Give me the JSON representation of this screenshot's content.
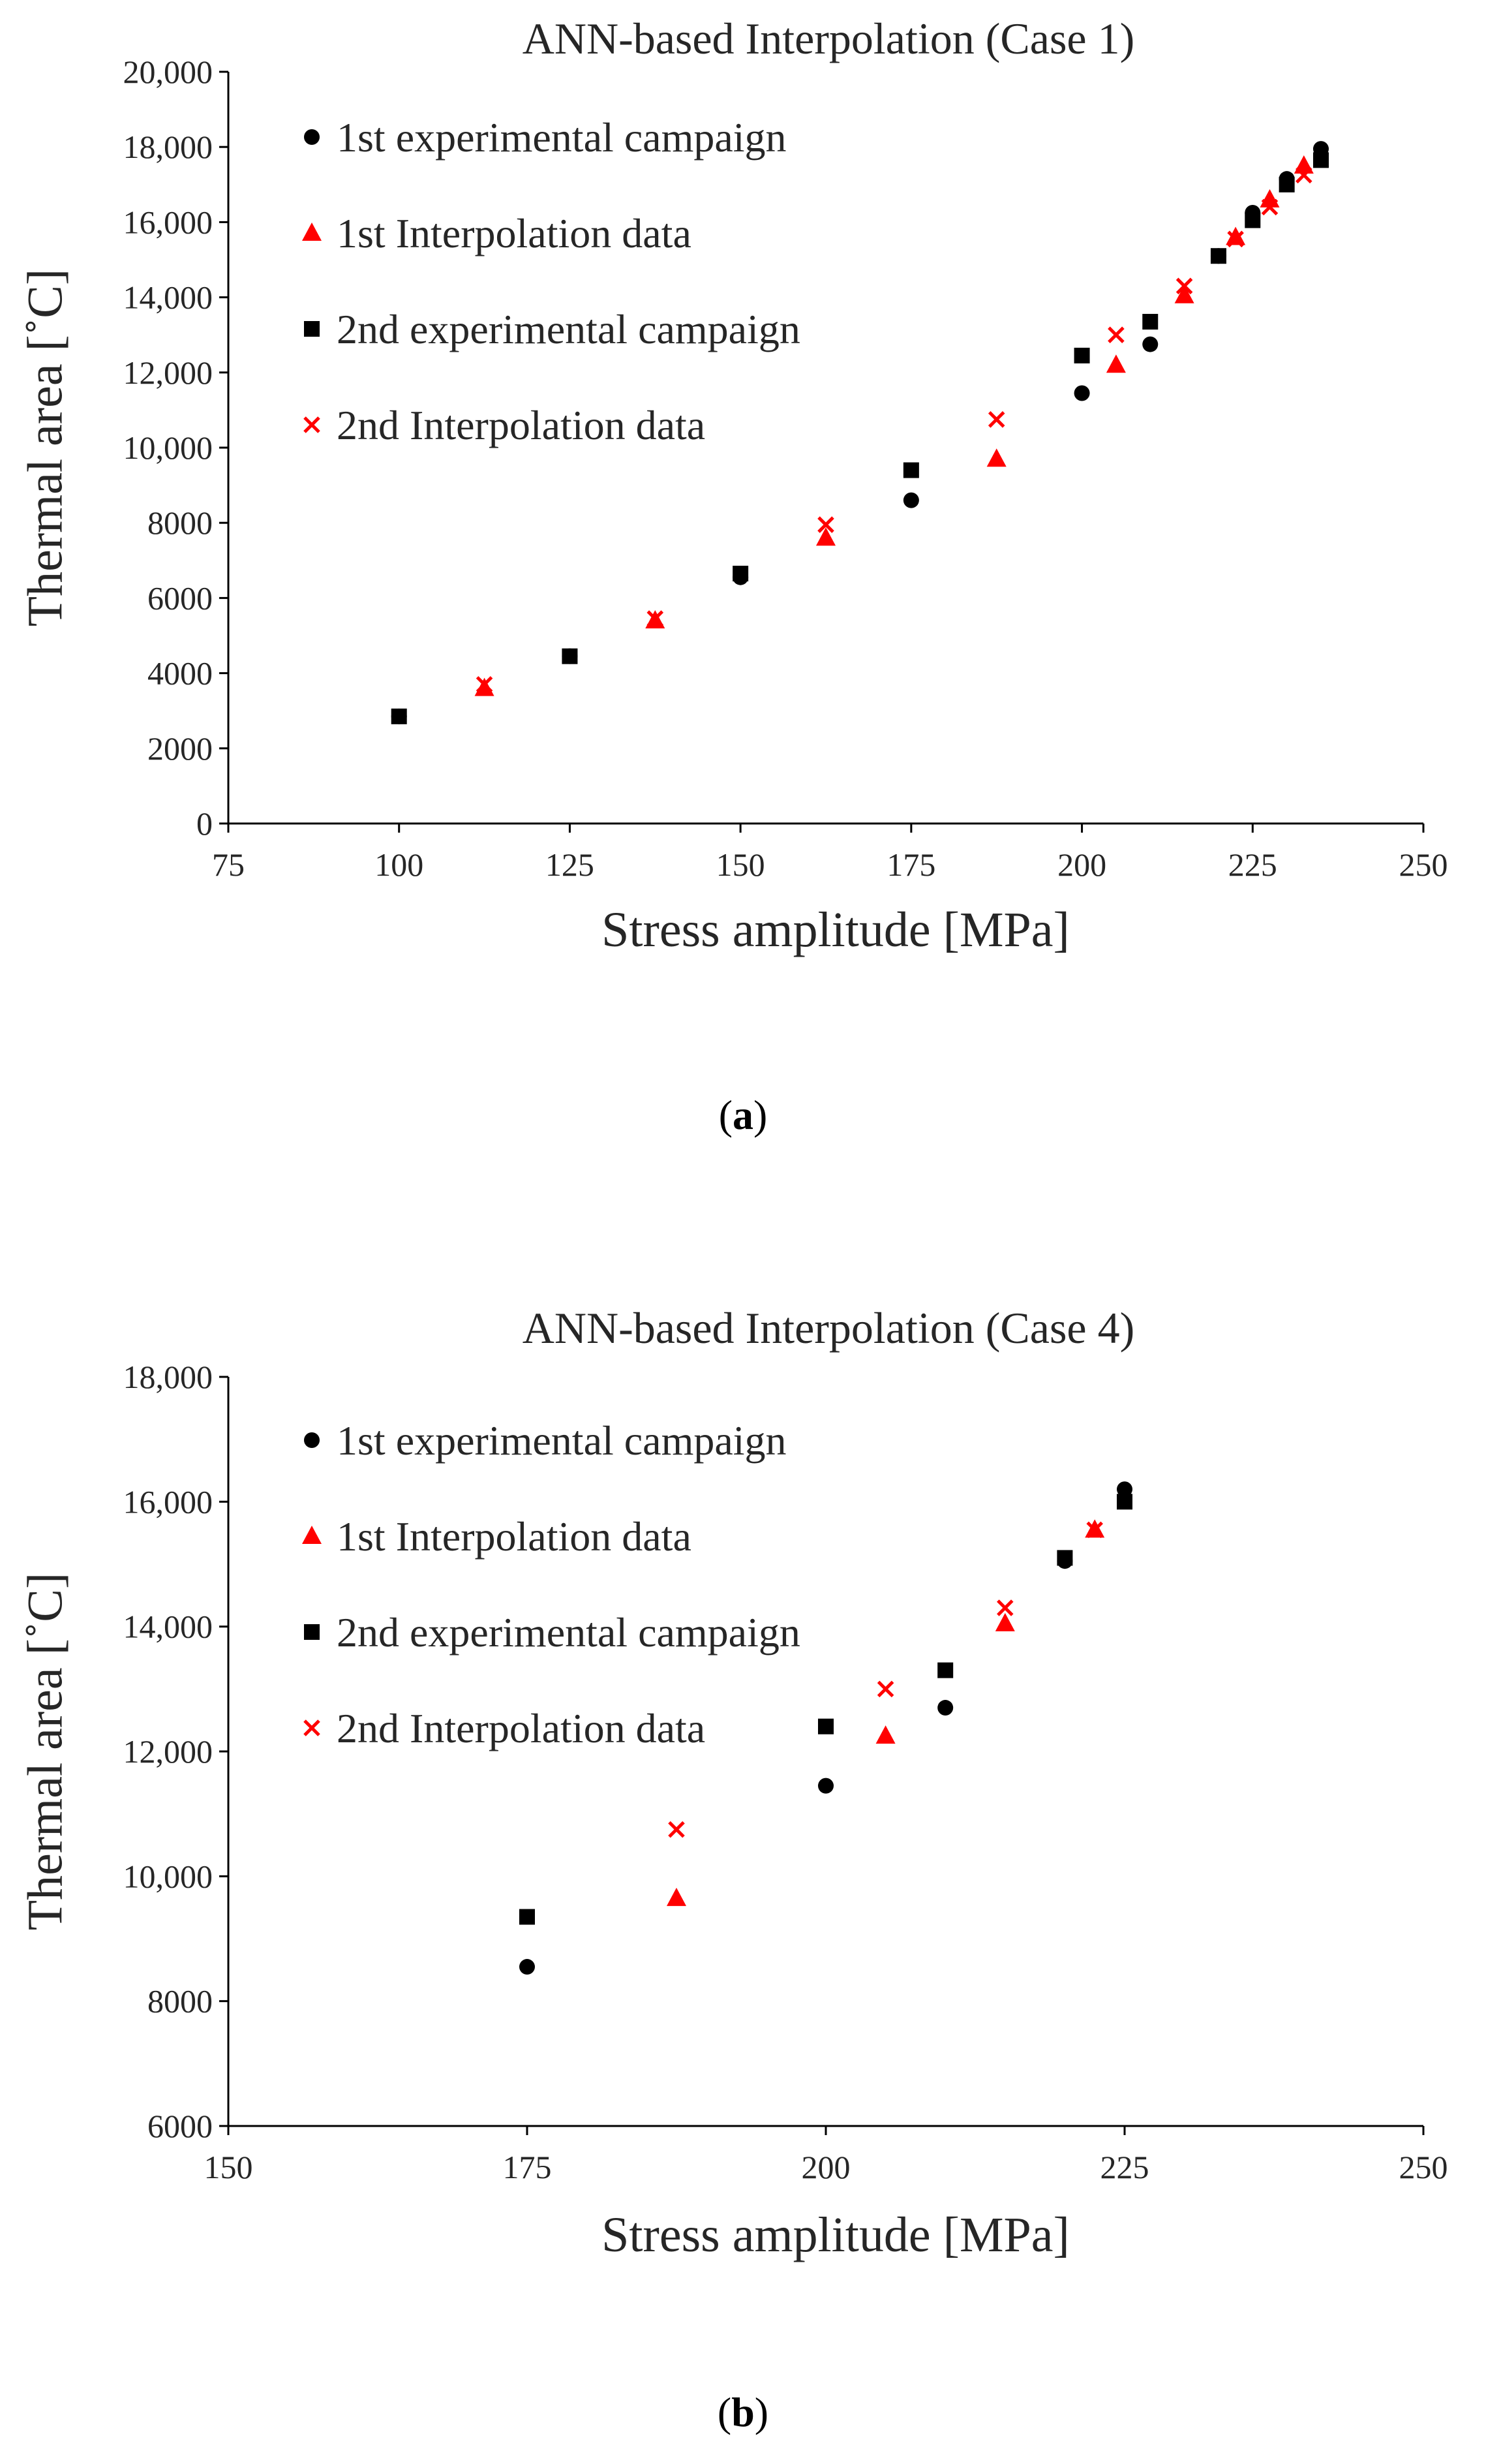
{
  "colors": {
    "black": "#000000",
    "red": "#ff0000",
    "text": "#262626"
  },
  "legend": {
    "items": [
      {
        "label": "1st experimental campaign",
        "marker": "circle",
        "color": "#000000"
      },
      {
        "label": "1st Interpolation data",
        "marker": "triangle",
        "color": "#ff0000"
      },
      {
        "label": "2nd experimental  campaign",
        "marker": "square",
        "color": "#000000"
      },
      {
        "label": "2nd Interpolation data",
        "marker": "cross",
        "color": "#ff0000"
      }
    ]
  },
  "chart_data": [
    {
      "type": "scatter",
      "panel": "a",
      "caption_letter": "a",
      "caption_open": "(",
      "caption_close": ")",
      "title": "ANN-based Interpolation (Case 1)",
      "xlabel": "Stress amplitude [MPa]",
      "ylabel": "Thermal area [˚C]",
      "xlim": [
        75,
        250
      ],
      "ylim": [
        0,
        20000
      ],
      "x_ticks": [
        75,
        100,
        125,
        150,
        175,
        200,
        225,
        250
      ],
      "x_tick_labels": [
        "75",
        "100",
        "125",
        "150",
        "175",
        "200",
        "225",
        "250"
      ],
      "y_ticks": [
        0,
        2000,
        4000,
        6000,
        8000,
        10000,
        12000,
        14000,
        16000,
        18000,
        20000
      ],
      "y_tick_labels": [
        "0",
        "2000",
        "4000",
        "6000",
        "8000",
        "10,000",
        "12,000",
        "14,000",
        "16,000",
        "18,000",
        "20,000"
      ],
      "series": [
        {
          "name": "1st experimental campaign",
          "marker": "circle",
          "color": "#000000",
          "x": [
            100,
            125,
            150,
            175,
            200,
            210,
            220,
            225,
            230,
            235
          ],
          "y": [
            2850,
            4450,
            6550,
            8600,
            11450,
            12750,
            15100,
            16250,
            17150,
            17950
          ]
        },
        {
          "name": "1st Interpolation data",
          "marker": "triangle",
          "color": "#ff0000",
          "x": [
            112.5,
            137.5,
            162.5,
            187.5,
            205,
            215,
            222.5,
            227.5,
            232.5
          ],
          "y": [
            3600,
            5400,
            7600,
            9700,
            12200,
            14050,
            15600,
            16600,
            17500
          ]
        },
        {
          "name": "2nd experimental  campaign",
          "marker": "square",
          "color": "#000000",
          "x": [
            100,
            125,
            150,
            175,
            200,
            210,
            220,
            225,
            230,
            235
          ],
          "y": [
            2850,
            4450,
            6650,
            9400,
            12450,
            13350,
            15100,
            16050,
            17000,
            17650
          ]
        },
        {
          "name": "2nd Interpolation data",
          "marker": "cross",
          "color": "#ff0000",
          "x": [
            112.5,
            137.5,
            162.5,
            187.5,
            205,
            215,
            222.5,
            227.5,
            232.5
          ],
          "y": [
            3700,
            5450,
            7950,
            10750,
            13000,
            14300,
            15550,
            16400,
            17250
          ]
        }
      ]
    },
    {
      "type": "scatter",
      "panel": "b",
      "caption_letter": "b",
      "caption_open": "(",
      "caption_close": ")",
      "title": "ANN-based Interpolation (Case 4)",
      "xlabel": "Stress amplitude [MPa]",
      "ylabel": "Thermal area [˚C]",
      "xlim": [
        150,
        250
      ],
      "ylim": [
        6000,
        18000
      ],
      "x_ticks": [
        150,
        175,
        200,
        225,
        250
      ],
      "x_tick_labels": [
        "150",
        "175",
        "200",
        "225",
        "250"
      ],
      "y_ticks": [
        6000,
        8000,
        10000,
        12000,
        14000,
        16000,
        18000
      ],
      "y_tick_labels": [
        "6000",
        "8000",
        "10,000",
        "12,000",
        "14,000",
        "16,000",
        "18,000"
      ],
      "series": [
        {
          "name": "1st experimental campaign",
          "marker": "circle",
          "color": "#000000",
          "x": [
            175,
            200,
            210,
            220,
            225
          ],
          "y": [
            8550,
            11450,
            12700,
            15050,
            16200
          ]
        },
        {
          "name": "1st Interpolation data",
          "marker": "triangle",
          "color": "#ff0000",
          "x": [
            187.5,
            205,
            215,
            222.5
          ],
          "y": [
            9650,
            12250,
            14050,
            15550
          ]
        },
        {
          "name": "2nd experimental  campaign",
          "marker": "square",
          "color": "#000000",
          "x": [
            175,
            200,
            210,
            220,
            225
          ],
          "y": [
            9350,
            12400,
            13300,
            15100,
            16000
          ]
        },
        {
          "name": "2nd Interpolation data",
          "marker": "cross",
          "color": "#ff0000",
          "x": [
            187.5,
            205,
            215,
            222.5
          ],
          "y": [
            10750,
            13000,
            14300,
            15550
          ]
        }
      ]
    }
  ]
}
